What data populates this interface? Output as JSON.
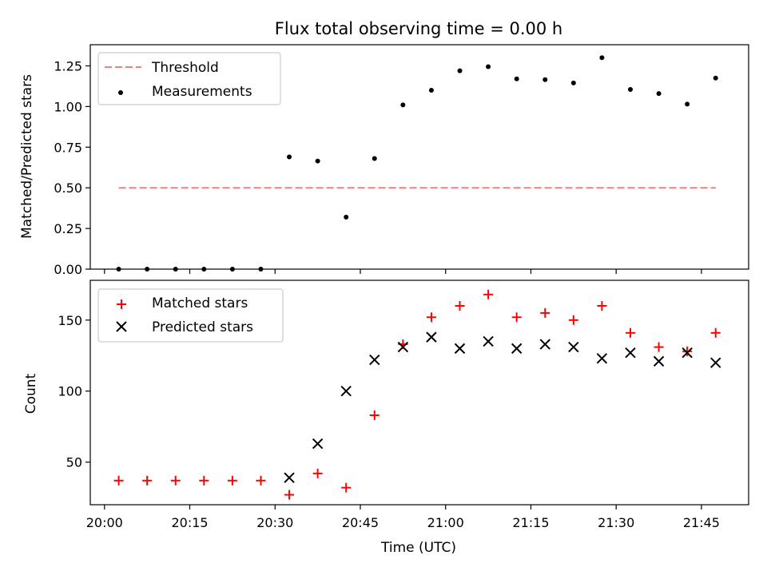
{
  "chart_data": [
    {
      "type": "scatter",
      "title": "Flux total observing time = 0.00 h",
      "xlabel": "",
      "ylabel": "Matched/Predicted stars",
      "x_ticks": [
        "20:00",
        "20:15",
        "20:30",
        "20:45",
        "21:00",
        "21:15",
        "21:30",
        "21:45"
      ],
      "x_tick_minutes": [
        0,
        15,
        30,
        45,
        60,
        75,
        90,
        105
      ],
      "xlim_minutes": [
        -2.5,
        113.3
      ],
      "ylim": [
        0,
        1.38
      ],
      "y_ticks": [
        "0.00",
        "0.25",
        "0.50",
        "0.75",
        "1.00",
        "1.25"
      ],
      "y_tick_values": [
        0,
        0.25,
        0.5,
        0.75,
        1.0,
        1.25
      ],
      "legend_position": "upper left",
      "threshold": {
        "name": "Threshold",
        "value": 0.5,
        "x_range_minutes": [
          2.5,
          107.5
        ],
        "color": "#f08080",
        "style": "dashed"
      },
      "series": [
        {
          "name": "Measurements",
          "marker": "dot",
          "color": "#000000",
          "x_minutes": [
            2.5,
            7.5,
            12.5,
            17.5,
            22.5,
            27.5,
            32.5,
            37.5,
            42.5,
            47.5,
            52.5,
            57.5,
            62.5,
            67.5,
            72.5,
            77.5,
            82.5,
            87.5,
            92.5,
            97.5,
            102.5,
            107.5
          ],
          "values": [
            0,
            0,
            0,
            0,
            0,
            0,
            0.69,
            0.665,
            0.32,
            0.68,
            1.01,
            1.1,
            1.22,
            1.245,
            1.17,
            1.165,
            1.145,
            1.3,
            1.105,
            1.08,
            1.015,
            1.175
          ]
        }
      ]
    },
    {
      "type": "scatter",
      "title": "",
      "xlabel": "Time (UTC)",
      "ylabel": "Count",
      "x_ticks": [
        "20:00",
        "20:15",
        "20:30",
        "20:45",
        "21:00",
        "21:15",
        "21:30",
        "21:45"
      ],
      "x_tick_minutes": [
        0,
        15,
        30,
        45,
        60,
        75,
        90,
        105
      ],
      "xlim_minutes": [
        -2.5,
        113.3
      ],
      "ylim": [
        20,
        178
      ],
      "y_ticks": [
        "50",
        "100",
        "150"
      ],
      "y_tick_values": [
        50,
        100,
        150
      ],
      "legend_position": "upper left",
      "series": [
        {
          "name": "Matched stars",
          "marker": "plus",
          "color": "#ff0000",
          "x_minutes": [
            2.5,
            7.5,
            12.5,
            17.5,
            22.5,
            27.5,
            32.5,
            37.5,
            42.5,
            47.5,
            52.5,
            57.5,
            62.5,
            67.5,
            72.5,
            77.5,
            82.5,
            87.5,
            92.5,
            97.5,
            102.5,
            107.5
          ],
          "values": [
            37,
            37,
            37,
            37,
            37,
            37,
            27,
            42,
            32,
            83,
            133,
            152,
            160,
            168,
            152,
            155,
            150,
            160,
            141,
            131,
            128,
            141
          ]
        },
        {
          "name": "Predicted stars",
          "marker": "x",
          "color": "#000000",
          "x_minutes": [
            32.5,
            37.5,
            42.5,
            47.5,
            52.5,
            57.5,
            62.5,
            67.5,
            72.5,
            77.5,
            82.5,
            87.5,
            92.5,
            97.5,
            102.5,
            107.5
          ],
          "values": [
            39,
            63,
            100,
            122,
            131,
            138,
            130,
            135,
            130,
            133,
            131,
            123,
            127,
            121,
            127,
            120
          ]
        }
      ]
    }
  ]
}
